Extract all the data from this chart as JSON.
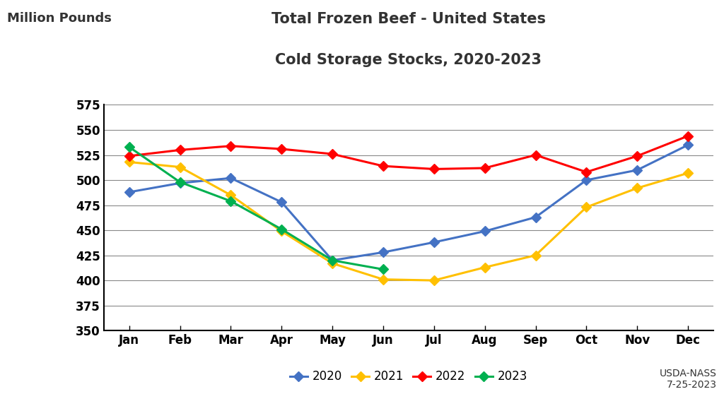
{
  "title_line1": "Total Frozen Beef - United States",
  "title_line2": "Cold Storage Stocks, 2020-2023",
  "ylabel": "Million Pounds",
  "months": [
    "Jan",
    "Feb",
    "Mar",
    "Apr",
    "May",
    "Jun",
    "Jul",
    "Aug",
    "Sep",
    "Oct",
    "Nov",
    "Dec"
  ],
  "series": {
    "2020": [
      488,
      497,
      502,
      478,
      420,
      428,
      438,
      449,
      463,
      500,
      510,
      535
    ],
    "2021": [
      518,
      513,
      485,
      449,
      417,
      401,
      400,
      413,
      425,
      473,
      492,
      507
    ],
    "2022": [
      524,
      530,
      534,
      531,
      526,
      514,
      511,
      512,
      525,
      508,
      524,
      544
    ],
    "2023": [
      533,
      498,
      479,
      451,
      420,
      411,
      null,
      null,
      null,
      null,
      null,
      null
    ]
  },
  "colors": {
    "2020": "#4472C4",
    "2021": "#FFC000",
    "2022": "#FF0000",
    "2023": "#00B050"
  },
  "ylim": [
    350,
    575
  ],
  "yticks": [
    350,
    375,
    400,
    425,
    450,
    475,
    500,
    525,
    550,
    575
  ],
  "annotation": "USDA-NASS\n7-25-2023",
  "background_color": "#FFFFFF",
  "plot_bg_color": "#FFFFFF",
  "grid_color": "#888888",
  "marker": "D",
  "linewidth": 2.2,
  "markersize": 7,
  "title_fontsize": 15,
  "label_fontsize": 13,
  "tick_fontsize": 12,
  "legend_fontsize": 12
}
